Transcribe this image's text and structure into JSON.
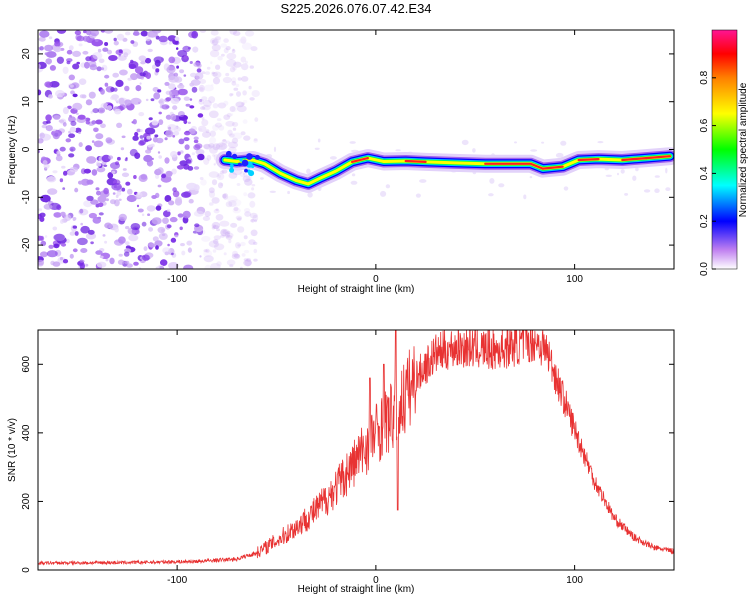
{
  "title": "S225.2026.076.07.42.E34",
  "chart_data": [
    {
      "type": "heatmap",
      "name": "spectrogram",
      "xlabel": "Height of straight line (km)",
      "ylabel": "Frequency (Hz)",
      "xlim": [
        -170,
        150
      ],
      "ylim": [
        -25,
        25
      ],
      "xticks": [
        -100,
        0,
        100
      ],
      "yticks": [
        -20,
        -10,
        0,
        10,
        20
      ],
      "noise_region_x": [
        -170,
        -68
      ],
      "trace": [
        {
          "x": -76,
          "y": -2.2
        },
        {
          "x": -70,
          "y": -2.5
        },
        {
          "x": -62,
          "y": -2.2
        },
        {
          "x": -56,
          "y": -3.0
        },
        {
          "x": -48,
          "y": -5.0
        },
        {
          "x": -40,
          "y": -6.5
        },
        {
          "x": -34,
          "y": -7.2
        },
        {
          "x": -28,
          "y": -6.0
        },
        {
          "x": -20,
          "y": -4.5
        },
        {
          "x": -12,
          "y": -2.6
        },
        {
          "x": -4,
          "y": -1.8
        },
        {
          "x": 4,
          "y": -2.5
        },
        {
          "x": 15,
          "y": -2.4
        },
        {
          "x": 25,
          "y": -2.6
        },
        {
          "x": 40,
          "y": -2.8
        },
        {
          "x": 55,
          "y": -3.0
        },
        {
          "x": 70,
          "y": -3.0
        },
        {
          "x": 78,
          "y": -3.0
        },
        {
          "x": 84,
          "y": -4.0
        },
        {
          "x": 94,
          "y": -3.6
        },
        {
          "x": 102,
          "y": -2.2
        },
        {
          "x": 112,
          "y": -2.0
        },
        {
          "x": 124,
          "y": -2.2
        },
        {
          "x": 136,
          "y": -1.8
        },
        {
          "x": 148,
          "y": -1.4
        }
      ],
      "colorbar": {
        "label": "Normalized spectral amplitude",
        "range": [
          0,
          1
        ],
        "ticks": [
          "0.0",
          "0.2",
          "0.4",
          "0.6",
          "0.8"
        ],
        "colors": [
          "#ffffff",
          "#a020f0",
          "#0000ff",
          "#00ffff",
          "#00ff00",
          "#ffff00",
          "#ff8000",
          "#ff0000",
          "#ff1493"
        ]
      }
    },
    {
      "type": "line",
      "name": "snr",
      "xlabel": "Height of straight line (km)",
      "ylabel": "SNR (10 * v/v)",
      "xlim": [
        -170,
        150
      ],
      "ylim": [
        0,
        700
      ],
      "xticks": [
        -100,
        0,
        100
      ],
      "yticks": [
        0,
        200,
        400,
        600
      ],
      "color": "#e83232",
      "series_envelope": [
        {
          "x": -170,
          "y": 20
        },
        {
          "x": -120,
          "y": 22
        },
        {
          "x": -90,
          "y": 25
        },
        {
          "x": -70,
          "y": 32
        },
        {
          "x": -60,
          "y": 50
        },
        {
          "x": -50,
          "y": 85
        },
        {
          "x": -40,
          "y": 125
        },
        {
          "x": -30,
          "y": 175
        },
        {
          "x": -20,
          "y": 240
        },
        {
          "x": -10,
          "y": 320
        },
        {
          "x": 0,
          "y": 400
        },
        {
          "x": 10,
          "y": 460
        },
        {
          "x": 20,
          "y": 560
        },
        {
          "x": 30,
          "y": 630
        },
        {
          "x": 40,
          "y": 650
        },
        {
          "x": 50,
          "y": 648
        },
        {
          "x": 60,
          "y": 640
        },
        {
          "x": 70,
          "y": 655
        },
        {
          "x": 80,
          "y": 670
        },
        {
          "x": 86,
          "y": 640
        },
        {
          "x": 92,
          "y": 540
        },
        {
          "x": 100,
          "y": 410
        },
        {
          "x": 110,
          "y": 260
        },
        {
          "x": 120,
          "y": 150
        },
        {
          "x": 130,
          "y": 95
        },
        {
          "x": 140,
          "y": 65
        },
        {
          "x": 150,
          "y": 55
        }
      ],
      "spikes": [
        {
          "x": 10,
          "y": 700
        },
        {
          "x": 11,
          "y": 175
        },
        {
          "x": 4,
          "y": 600
        },
        {
          "x": -3,
          "y": 560
        }
      ]
    }
  ]
}
